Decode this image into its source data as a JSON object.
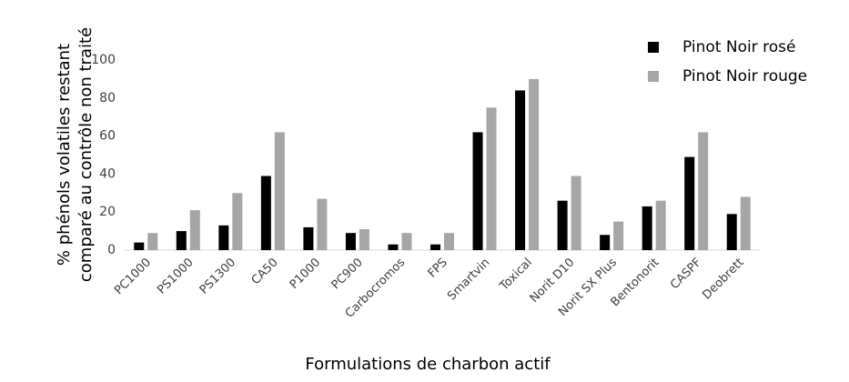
{
  "chart_data": {
    "type": "bar",
    "y_label": [
      "% phénols volatiles restant",
      "comparé au contrôle non traité"
    ],
    "x_label": "Formulations de charbon actif",
    "categories": [
      "PC1000",
      "PS1000",
      "PS1300",
      "CA50",
      "P1000",
      "PC900",
      "Carbocromos",
      "FPS",
      "Smartvin",
      "Toxical",
      "Norit D10",
      "Norit SX Plus",
      "Bentonorit",
      "CASPF",
      "Deobrett"
    ],
    "series": [
      {
        "name": "Pinot Noir rosé",
        "color": "#000000",
        "values": [
          4,
          10,
          13,
          39,
          12,
          9,
          3,
          3,
          62,
          84,
          26,
          8,
          23,
          49,
          19
        ]
      },
      {
        "name": "Pinot Noir rouge",
        "color": "#a6a6a6",
        "values": [
          9,
          21,
          30,
          62,
          27,
          11,
          9,
          9,
          75,
          90,
          39,
          15,
          26,
          62,
          28
        ]
      }
    ],
    "ylim": [
      0,
      100
    ],
    "yticks": [
      0,
      20,
      40,
      60,
      80,
      100
    ],
    "grid": false,
    "legend": "top-right"
  }
}
